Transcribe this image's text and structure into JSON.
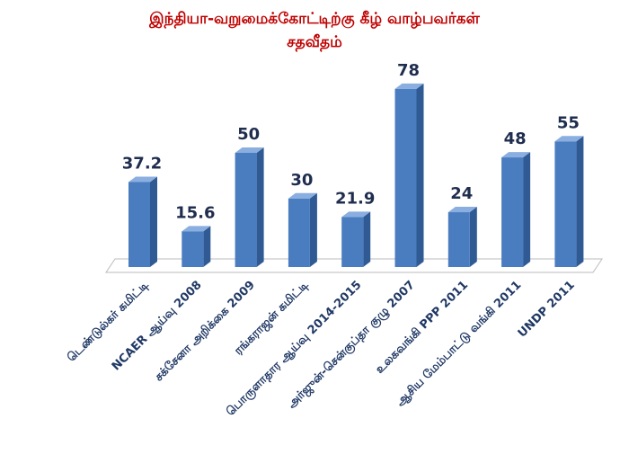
{
  "chart_data": {
    "type": "bar3d",
    "title": "இந்தியா-வறுமைக்கோட்டிற்கு கீழ் வாழ்பவர்கள் சதவீதம்",
    "categories": [
      "டெண்டுல்கர் கமிட்டி",
      "NCAER ஆய்வு 2008",
      "சக்சேனா அறிக்கை 2009",
      "ரங்கராஜன் கமிட்டி",
      "பொருளாதார ஆய்வு 2014-2015",
      "அர்ஜுன்-சென்குப்தா குழு 2007",
      "உலகவங்கி PPP 2011",
      "ஆசிய மேம்பாட்டு வங்கி 2011",
      "UNDP 2011"
    ],
    "values": [
      37.2,
      15.6,
      50,
      30,
      21.9,
      78,
      24,
      48,
      55
    ],
    "color": "#4a7cc0"
  }
}
